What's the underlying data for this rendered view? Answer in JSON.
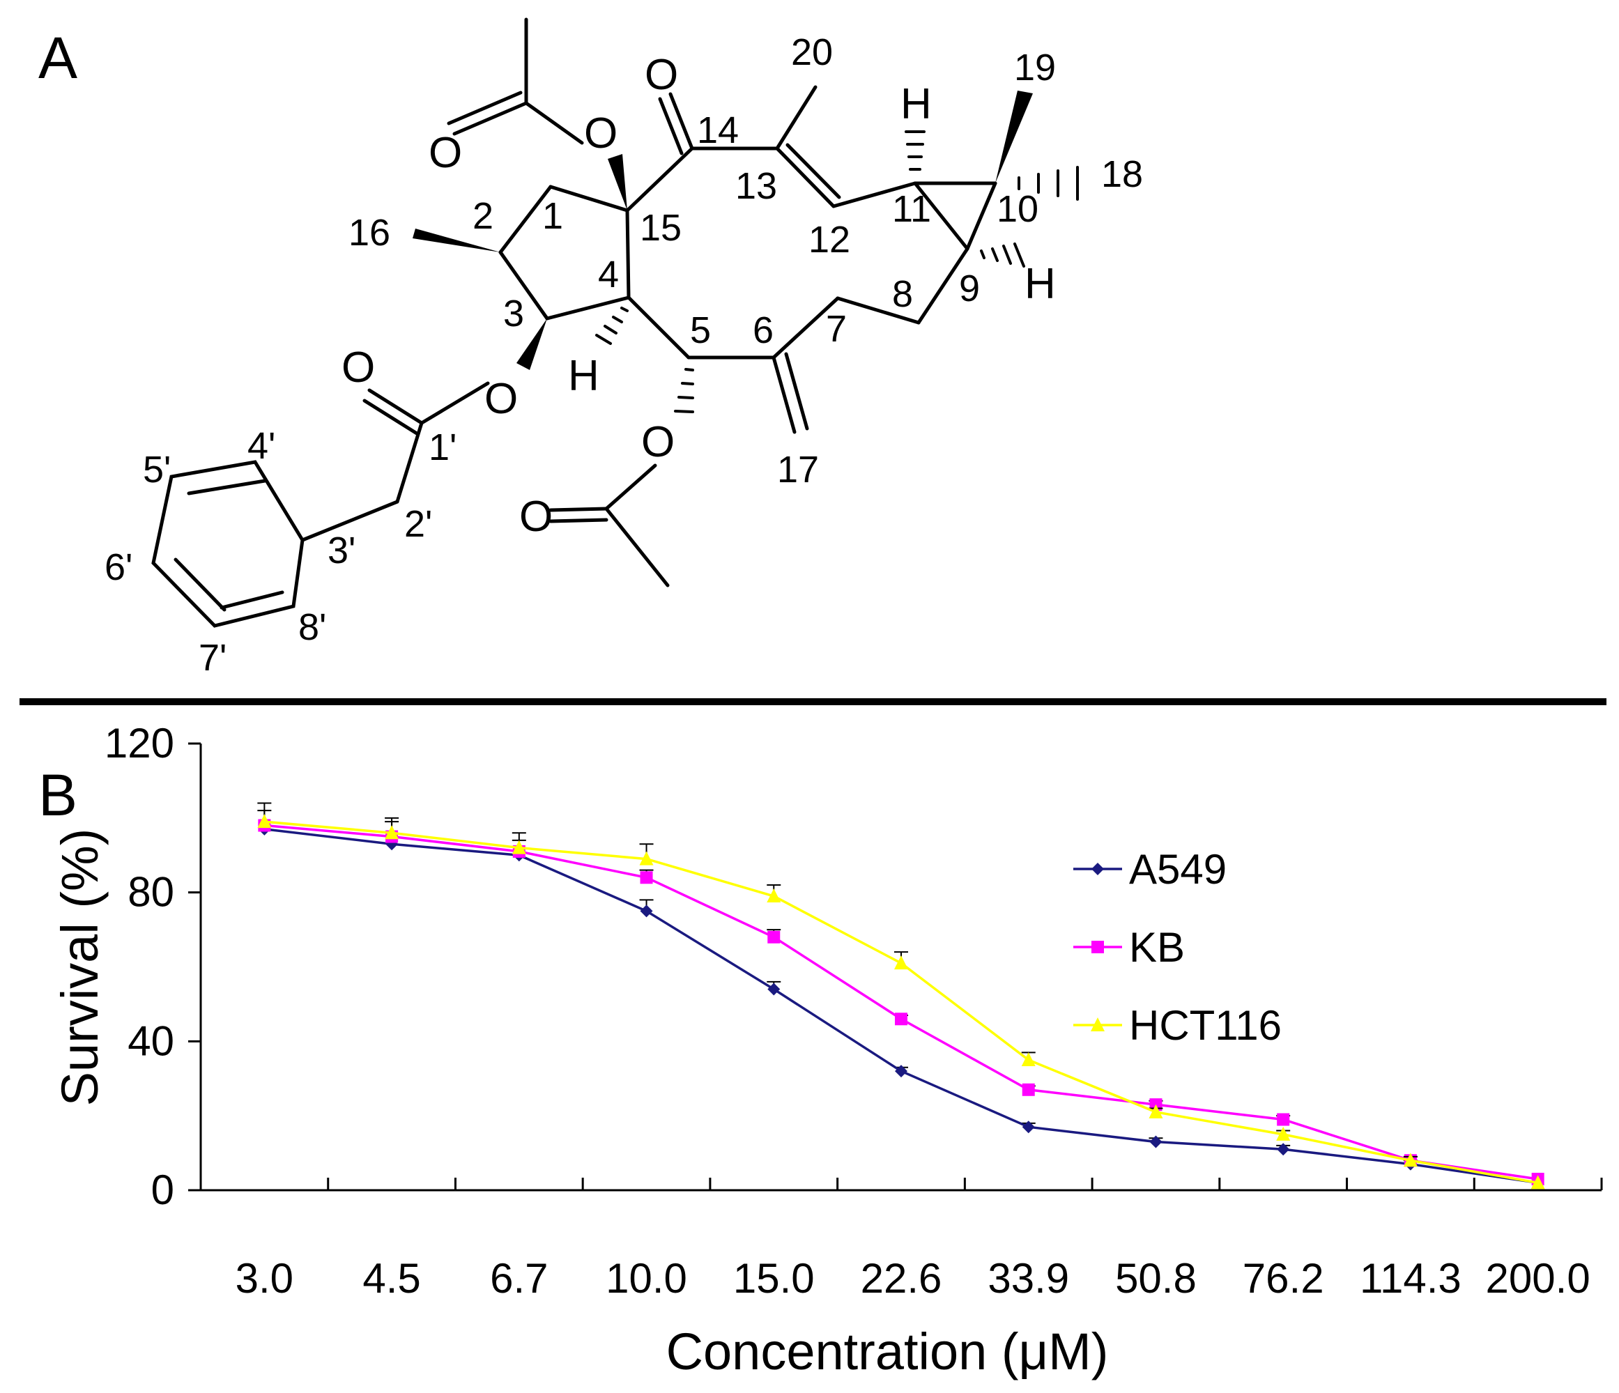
{
  "panels": {
    "a_label": "A",
    "b_label": "B"
  },
  "structure": {
    "atoms": {
      "o_top_acetate_carbonyl": "O",
      "o_top_acetate_ester": "O",
      "o_ketone": "O",
      "o_ester_3": "O",
      "o_ester_3_carbonyl": "O",
      "o_ester_5": "O",
      "o_ester_5_carbonyl": "O",
      "h_4": "H",
      "h_11": "H",
      "h_9": "H"
    },
    "numbers": {
      "n1": "1",
      "n2": "2",
      "n3": "3",
      "n4": "4",
      "n5": "5",
      "n6": "6",
      "n7": "7",
      "n8": "8",
      "n9": "9",
      "n10": "10",
      "n11": "11",
      "n12": "12",
      "n13": "13",
      "n14": "14",
      "n15": "15",
      "n16": "16",
      "n17": "17",
      "n18": "18",
      "n19": "19",
      "n20": "20",
      "p1": "1'",
      "p2": "2'",
      "p3": "3'",
      "p4": "4'",
      "p5": "5'",
      "p6": "6'",
      "p7": "7'",
      "p8": "8'"
    }
  },
  "chart_data": {
    "type": "line",
    "title": "",
    "xlabel": "Concentration (μM)",
    "ylabel": "Survival (%)",
    "ylim": [
      0,
      120
    ],
    "yticks": [
      "0",
      "40",
      "80",
      "120"
    ],
    "categories": [
      "3.0",
      "4.5",
      "6.7",
      "10.0",
      "15.0",
      "22.6",
      "33.9",
      "50.8",
      "76.2",
      "114.3",
      "200.0"
    ],
    "legend_position": "top-right",
    "grid": false,
    "series": [
      {
        "name": "A549",
        "color": "#1a1a80",
        "marker": "diamond",
        "values": [
          97,
          93,
          90,
          75,
          54,
          32,
          17,
          13,
          11,
          7,
          2
        ],
        "errors": [
          0,
          0,
          0,
          3,
          2,
          1,
          1,
          1,
          1,
          1,
          0
        ]
      },
      {
        "name": "KB",
        "color": "#ff00ff",
        "marker": "square",
        "values": [
          98,
          95,
          91,
          84,
          68,
          46,
          27,
          23,
          19,
          8,
          3
        ],
        "errors": [
          4,
          4,
          3,
          2,
          2,
          1,
          1,
          1,
          1,
          1,
          0
        ]
      },
      {
        "name": "HCT116",
        "color": "#ffff00",
        "marker": "triangle",
        "values": [
          99,
          96,
          92,
          89,
          79,
          61,
          35,
          21,
          15,
          8,
          2
        ],
        "errors": [
          5,
          4,
          4,
          4,
          3,
          3,
          2,
          1,
          1,
          1,
          0
        ]
      }
    ]
  }
}
